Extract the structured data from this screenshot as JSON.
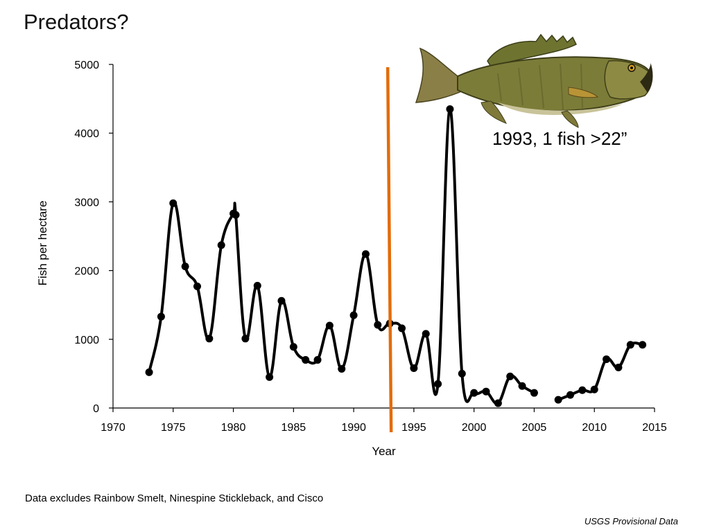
{
  "slide": {
    "title": "Predators?",
    "footnote": "Data excludes Rainbow Smelt, Ninespine Stickleback, and Cisco",
    "source": "USGS Provisional Data",
    "annotation": "1993, 1 fish >22”",
    "image_icon": "smallmouth-bass-image"
  },
  "chart_data": {
    "type": "line",
    "xlabel": "Year",
    "ylabel": "Fish per hectare",
    "xlim": [
      1970,
      2015
    ],
    "ylim": [
      0,
      5000
    ],
    "x_ticks": [
      1970,
      1975,
      1980,
      1985,
      1990,
      1995,
      2000,
      2005,
      2010,
      2015
    ],
    "y_ticks": [
      0,
      1000,
      2000,
      3000,
      4000,
      5000
    ],
    "grid": false,
    "line_color": "#000000",
    "marker_line": {
      "x": 1993,
      "color": "#E36C0A"
    },
    "segments": [
      {
        "x": [
          1973,
          1974,
          1975,
          1976,
          1977,
          1978,
          1979,
          1980,
          1980.2,
          1981,
          1982,
          1983,
          1984,
          1985,
          1986,
          1987,
          1988,
          1989,
          1990,
          1991,
          1992,
          1993,
          1994,
          1995,
          1996,
          1997,
          1998,
          1999,
          2000,
          2001,
          2002,
          2003,
          2004,
          2005
        ],
        "y": [
          520,
          1330,
          2980,
          2060,
          1770,
          1010,
          2370,
          2830,
          2810,
          1010,
          1780,
          450,
          1560,
          890,
          700,
          700,
          1200,
          570,
          1350,
          2240,
          1210,
          1230,
          1160,
          580,
          1080,
          350,
          4350,
          500,
          220,
          240,
          70,
          460,
          320,
          220
        ]
      },
      {
        "x": [
          2007,
          2008,
          2009,
          2010,
          2011,
          2012,
          2013,
          2014
        ],
        "y": [
          120,
          190,
          260,
          270,
          710,
          590,
          920,
          920
        ]
      }
    ]
  }
}
